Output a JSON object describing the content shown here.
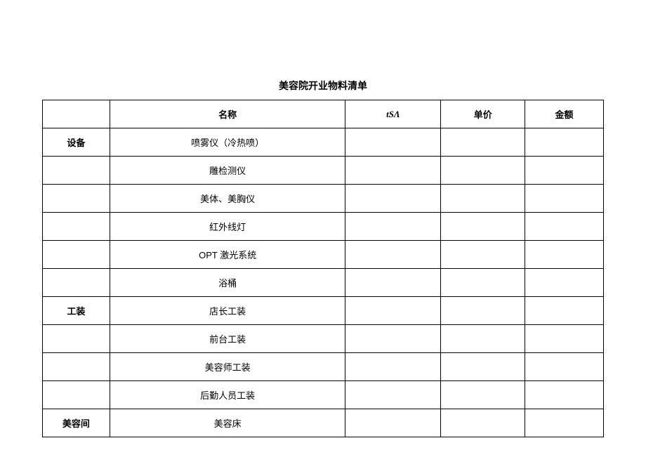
{
  "title": "美容院开业物料清单",
  "headers": {
    "category": "",
    "name": "名称",
    "qty": "tSΛ",
    "price": "单价",
    "amount": "金额"
  },
  "rows": [
    {
      "category": "设备",
      "name": "喷雾仪（冷热喷）",
      "qty": "",
      "price": "",
      "amount": ""
    },
    {
      "category": "",
      "name": "雕检测仪",
      "qty": "",
      "price": "",
      "amount": ""
    },
    {
      "category": "",
      "name": "美体、美胸仪",
      "qty": "",
      "price": "",
      "amount": ""
    },
    {
      "category": "",
      "name": "红外线灯",
      "qty": "",
      "price": "",
      "amount": ""
    },
    {
      "category": "",
      "name": "OPT 激光系统",
      "qty": "",
      "price": "",
      "amount": ""
    },
    {
      "category": "",
      "name": "浴桶",
      "qty": "",
      "price": "",
      "amount": ""
    },
    {
      "category": "工装",
      "name": "店长工装",
      "qty": "",
      "price": "",
      "amount": ""
    },
    {
      "category": "",
      "name": "前台工装",
      "qty": "",
      "price": "",
      "amount": ""
    },
    {
      "category": "",
      "name": "美容师工装",
      "qty": "",
      "price": "",
      "amount": ""
    },
    {
      "category": "",
      "name": "后勤人员工装",
      "qty": "",
      "price": "",
      "amount": ""
    },
    {
      "category": "美容间",
      "name": "美容床",
      "qty": "",
      "price": "",
      "amount": ""
    }
  ]
}
